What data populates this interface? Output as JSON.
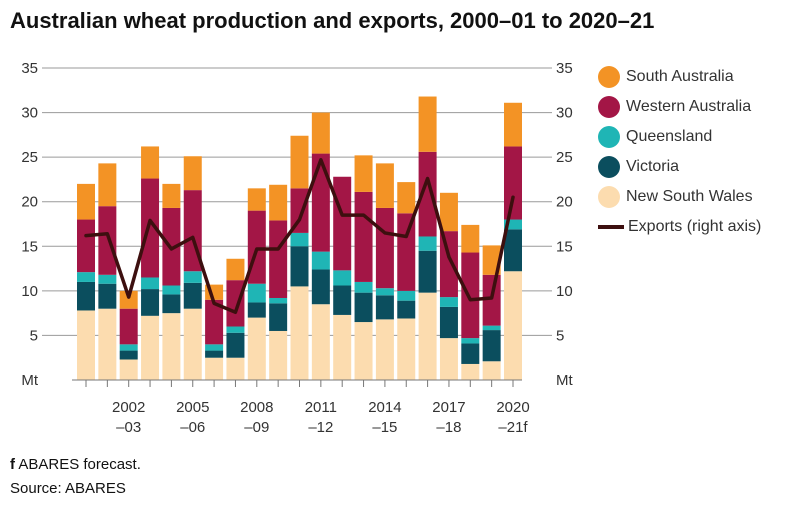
{
  "title": "Australian wheat production and exports, 2000–01 to 2020–21",
  "footnote_marker": "f",
  "footnote_text": "ABARES forecast.",
  "source": "Source: ABARES",
  "colors": {
    "south_australia": "#f39325",
    "western_australia": "#a31646",
    "queensland": "#1fb5b5",
    "victoria": "#0b4e5e",
    "new_south_wales": "#fcdcaf",
    "exports": "#3d0f0f"
  },
  "chart_data": {
    "type": "bar",
    "stacked": true,
    "categories": [
      "2000–01",
      "2001–02",
      "2002–03",
      "2003–04",
      "2004–05",
      "2005–06",
      "2006–07",
      "2007–08",
      "2008–09",
      "2009–10",
      "2010–11",
      "2011–12",
      "2012–13",
      "2013–14",
      "2014–15",
      "2015–16",
      "2016–17",
      "2017–18",
      "2018–19",
      "2019–20",
      "2020–21"
    ],
    "tick_labels": [
      {
        "index": 2,
        "line1": "2002",
        "line2": "–03"
      },
      {
        "index": 5,
        "line1": "2005",
        "line2": "–06"
      },
      {
        "index": 8,
        "line1": "2008",
        "line2": "–09"
      },
      {
        "index": 11,
        "line1": "2011",
        "line2": "–12"
      },
      {
        "index": 14,
        "line1": "2014",
        "line2": "–15"
      },
      {
        "index": 17,
        "line1": "2017",
        "line2": "–18"
      },
      {
        "index": 20,
        "line1": "2020",
        "line2": "–21f"
      }
    ],
    "y_ticks": [
      "5",
      "10",
      "15",
      "20",
      "25",
      "30",
      "35"
    ],
    "y_unit": "Mt",
    "ylim": [
      0,
      35
    ],
    "series": [
      {
        "name": "New South Wales",
        "color_key": "new_south_wales",
        "values": [
          7.8,
          8.0,
          2.3,
          7.2,
          7.5,
          8.0,
          2.5,
          2.5,
          7.0,
          5.5,
          10.5,
          8.5,
          7.3,
          6.5,
          6.8,
          6.9,
          9.8,
          4.7,
          1.8,
          2.1,
          12.2
        ]
      },
      {
        "name": "Victoria",
        "color_key": "victoria",
        "values": [
          3.2,
          2.8,
          1.0,
          3.0,
          2.1,
          2.9,
          0.8,
          2.8,
          1.7,
          3.1,
          4.5,
          3.9,
          3.3,
          3.3,
          2.7,
          2.0,
          4.7,
          3.5,
          2.3,
          3.5,
          4.7
        ]
      },
      {
        "name": "Queensland",
        "color_key": "queensland",
        "values": [
          1.1,
          1.0,
          0.7,
          1.3,
          1.0,
          1.3,
          0.7,
          0.7,
          2.1,
          0.6,
          1.5,
          2.0,
          1.7,
          1.2,
          0.8,
          1.1,
          1.6,
          1.1,
          0.6,
          0.5,
          1.1
        ]
      },
      {
        "name": "Western Australia",
        "color_key": "western_australia",
        "values": [
          5.9,
          7.7,
          4.0,
          11.1,
          8.7,
          9.1,
          5.0,
          5.2,
          8.2,
          8.7,
          5.0,
          11.0,
          10.5,
          10.1,
          9.0,
          8.7,
          9.5,
          7.4,
          9.6,
          5.7,
          8.2
        ]
      },
      {
        "name": "South Australia",
        "color_key": "south_australia",
        "values": [
          4.0,
          4.8,
          2.0,
          3.6,
          2.7,
          3.8,
          1.7,
          2.4,
          2.5,
          4.0,
          5.9,
          4.6,
          0.0,
          4.1,
          5.0,
          3.5,
          6.2,
          4.3,
          3.1,
          3.3,
          4.9
        ]
      }
    ],
    "line_series": {
      "name": "Exports (right axis)",
      "color_key": "exports",
      "values": [
        16.2,
        16.4,
        9.3,
        17.9,
        14.7,
        16.0,
        8.6,
        7.6,
        14.7,
        14.7,
        18.0,
        24.7,
        18.5,
        18.5,
        16.5,
        16.1,
        22.6,
        13.8,
        9.0,
        9.2,
        20.5
      ]
    },
    "legend": [
      {
        "label": "South Australia",
        "color_key": "south_australia",
        "kind": "dot"
      },
      {
        "label": "Western Australia",
        "color_key": "western_australia",
        "kind": "dot"
      },
      {
        "label": "Queensland",
        "color_key": "queensland",
        "kind": "dot"
      },
      {
        "label": "Victoria",
        "color_key": "victoria",
        "kind": "dot"
      },
      {
        "label": "New South Wales",
        "color_key": "new_south_wales",
        "kind": "dot"
      },
      {
        "label": "Exports (right axis)",
        "color_key": "exports",
        "kind": "line"
      }
    ],
    "grid": true,
    "legend_position": "right"
  }
}
